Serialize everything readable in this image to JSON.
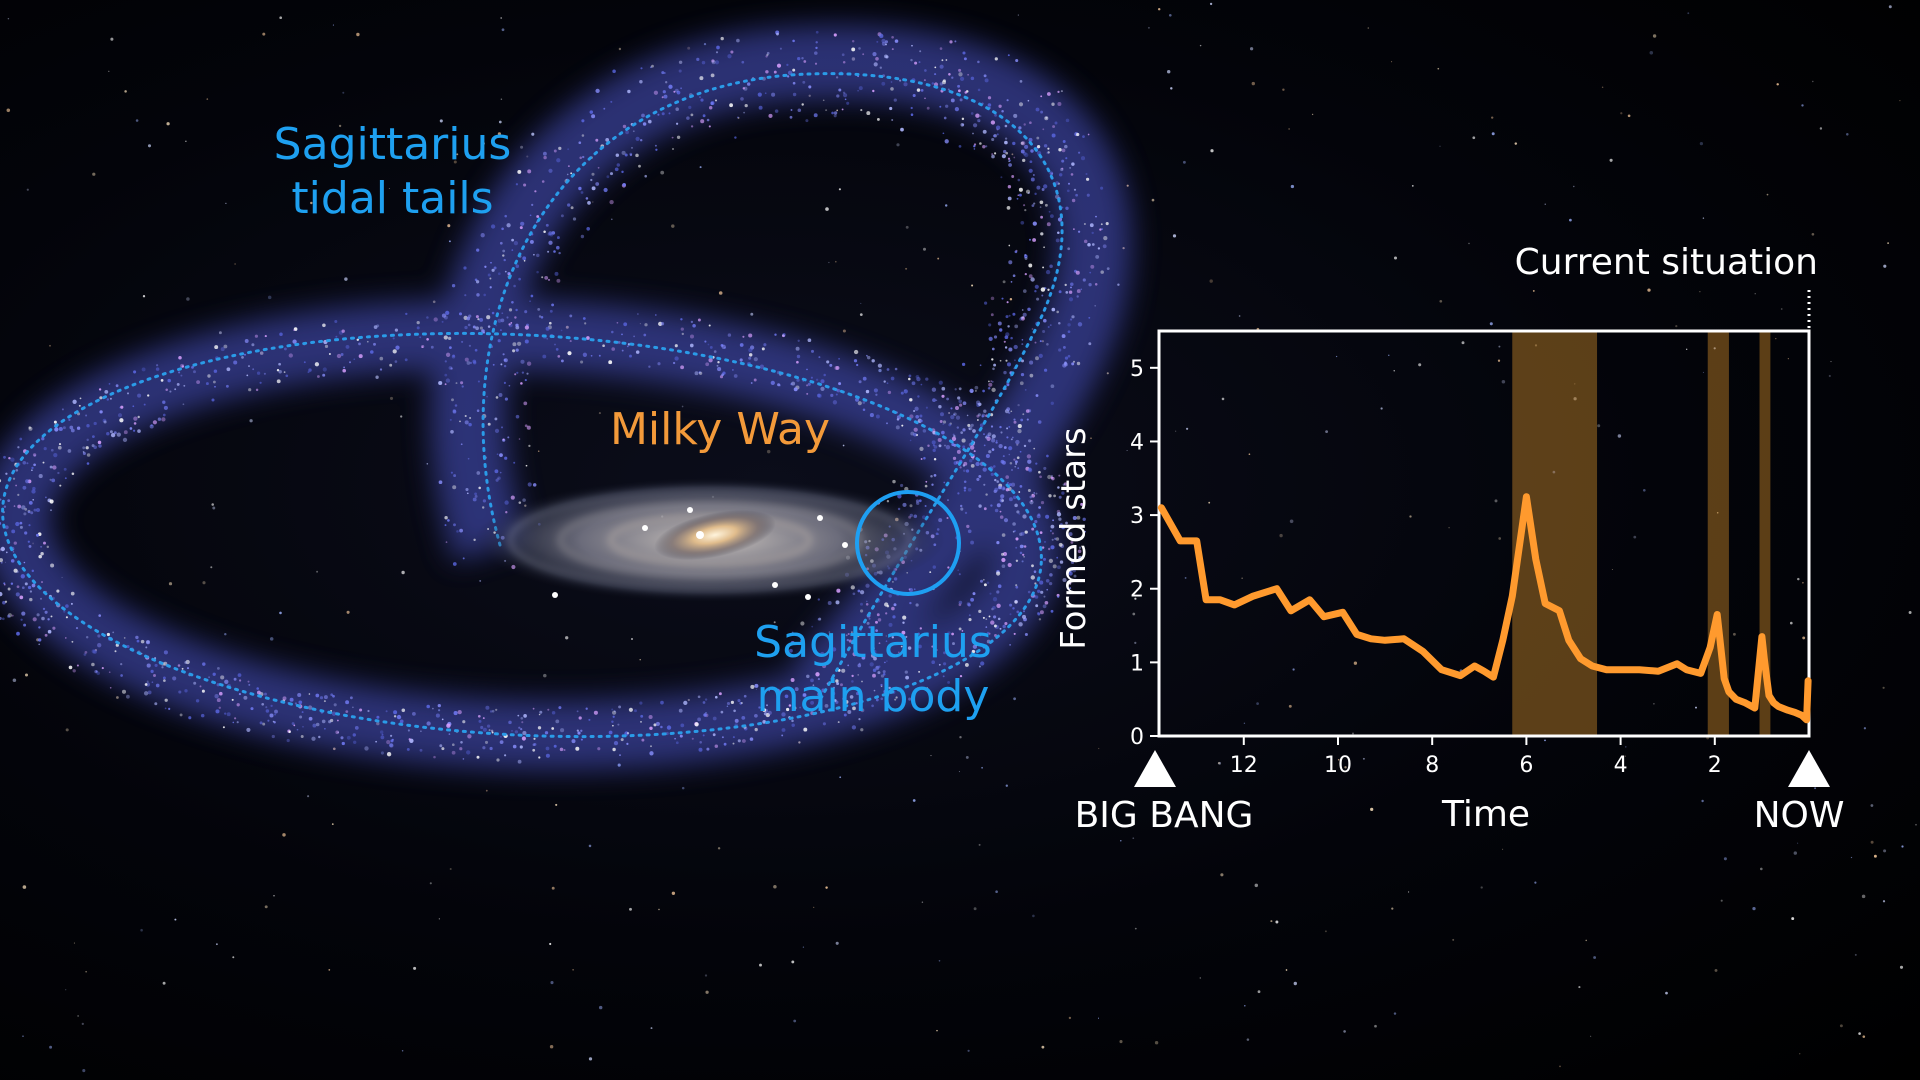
{
  "illustration": {
    "labels": {
      "tidal_tails": [
        "Sagittarius",
        "tidal tails"
      ],
      "milky_way": "Milky Way",
      "main_body": [
        "Sagittarius",
        "main body"
      ]
    },
    "colors": {
      "sagittarius": "#1ea0f0",
      "milky_way": "#f39a3a"
    }
  },
  "chart_data": {
    "type": "line",
    "ylabel": "Formed stars",
    "xlabel": "Time",
    "xlim": [
      13.8,
      0
    ],
    "ylim": [
      0,
      5.5
    ],
    "xticks": [
      12,
      10,
      8,
      6,
      4,
      2
    ],
    "yticks": [
      0,
      1,
      2,
      3,
      4,
      5
    ],
    "left_marker_label": "BIG BANG",
    "right_marker_label": "NOW",
    "current_situation_label": "Current situation",
    "line_color": "#ff9a2e",
    "highlight_color": "#f0a030",
    "highlight_bands": [
      [
        6.3,
        4.5
      ],
      [
        2.15,
        1.7
      ],
      [
        1.05,
        0.82
      ]
    ],
    "series": [
      {
        "x": [
          13.75,
          13.35,
          13.0,
          12.8,
          12.5,
          12.2,
          11.8,
          11.3,
          11.0,
          10.6,
          10.3,
          9.9,
          9.6,
          9.3,
          9.0,
          8.6,
          8.2,
          7.8,
          7.4,
          7.1,
          6.9,
          6.7,
          6.5,
          6.3,
          6.0,
          5.8,
          5.6,
          5.3,
          5.1,
          4.85,
          4.6,
          4.3,
          4.0,
          3.6,
          3.2,
          2.8,
          2.6,
          2.3,
          2.1,
          1.95,
          1.8,
          1.7,
          1.55,
          1.35,
          1.15,
          1.0,
          0.95,
          0.9,
          0.85,
          0.75,
          0.65,
          0.45,
          0.3,
          0.15,
          0.05,
          0.02
        ],
        "y": [
          3.1,
          2.65,
          2.65,
          1.85,
          1.85,
          1.78,
          1.9,
          2.0,
          1.7,
          1.85,
          1.62,
          1.68,
          1.38,
          1.32,
          1.3,
          1.32,
          1.15,
          0.9,
          0.82,
          0.95,
          0.88,
          0.8,
          1.3,
          1.9,
          3.25,
          2.4,
          1.8,
          1.7,
          1.3,
          1.05,
          0.95,
          0.9,
          0.9,
          0.9,
          0.88,
          0.98,
          0.9,
          0.85,
          1.2,
          1.65,
          0.78,
          0.6,
          0.5,
          0.45,
          0.38,
          1.35,
          1.05,
          0.8,
          0.55,
          0.45,
          0.4,
          0.35,
          0.32,
          0.28,
          0.22,
          0.75
        ]
      }
    ]
  }
}
